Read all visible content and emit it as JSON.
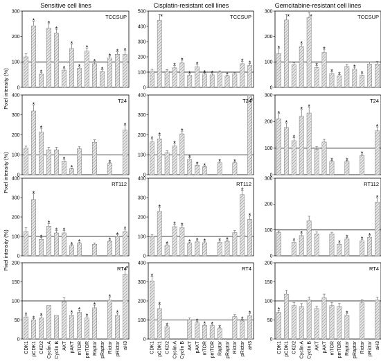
{
  "column_titles": [
    "Sensitive cell lines",
    "Cisplatin-resistant cell lines",
    "Gemcitabine-resistant cell lines"
  ],
  "row_labels": [
    "TCCSUP",
    "T24",
    "RT112",
    "RT4"
  ],
  "y_axis_label": "Pixel intensity (%)",
  "categories": [
    "CDK1",
    "pCDK1",
    "CKD2",
    "Cyclin A",
    "Cyclin B",
    "AKT",
    "pAKT",
    "mTOR",
    "pmTOR",
    "Raptor",
    "pRaptor",
    "Rictor",
    "pRictor",
    "aH3"
  ],
  "colors": {
    "bar_fill": "#d9d9d9",
    "bar_hatch": "#7f7f7f",
    "axis": "#000000",
    "reference_line": "#000000"
  },
  "chart_data": [
    {
      "type": "bar",
      "row": "TCCSUP",
      "column": "Sensitive cell lines",
      "ylim": [
        0,
        300
      ],
      "yticks": [
        0,
        100,
        200,
        300
      ],
      "reference_line": 100,
      "values": [
        120,
        242,
        52,
        233,
        213,
        68,
        153,
        75,
        143,
        93,
        62,
        115,
        130,
        130
      ],
      "errors": [
        12,
        18,
        6,
        18,
        16,
        6,
        18,
        6,
        12,
        8,
        7,
        8,
        10,
        15
      ],
      "significant": [
        false,
        true,
        true,
        true,
        true,
        true,
        true,
        true,
        true,
        true,
        true,
        true,
        true,
        true
      ]
    },
    {
      "type": "bar",
      "row": "TCCSUP",
      "column": "Cisplatin-resistant cell lines",
      "ylim": [
        0,
        500
      ],
      "yticks": [
        0,
        100,
        200,
        300,
        400,
        500
      ],
      "reference_line": 100,
      "values": [
        108,
        440,
        108,
        128,
        160,
        80,
        135,
        88,
        82,
        100,
        75,
        90,
        155,
        145
      ],
      "errors": [
        10,
        40,
        8,
        15,
        18,
        8,
        14,
        8,
        8,
        8,
        6,
        8,
        15,
        12
      ],
      "significant": [
        false,
        true,
        false,
        true,
        true,
        true,
        true,
        true,
        true,
        false,
        true,
        false,
        true,
        true
      ],
      "offscale": []
    },
    {
      "type": "bar",
      "row": "TCCSUP",
      "column": "Gemcitabine-resistant cell lines",
      "ylim": [
        0,
        300
      ],
      "yticks": [
        0,
        100,
        200,
        300
      ],
      "reference_line": 100,
      "values": [
        133,
        265,
        90,
        160,
        275,
        78,
        138,
        55,
        45,
        82,
        72,
        48,
        92,
        92
      ],
      "errors": [
        20,
        22,
        8,
        10,
        20,
        8,
        12,
        6,
        6,
        8,
        7,
        5,
        8,
        10
      ],
      "significant": [
        true,
        true,
        false,
        true,
        true,
        true,
        true,
        true,
        true,
        false,
        true,
        true,
        false,
        false
      ]
    },
    {
      "type": "bar",
      "row": "T24",
      "column": "Sensitive cell lines",
      "ylim": [
        0,
        400
      ],
      "yticks": [
        0,
        100,
        200,
        300,
        400
      ],
      "reference_line": 100,
      "values": [
        133,
        320,
        215,
        125,
        125,
        68,
        30,
        130,
        null,
        163,
        null,
        57,
        null,
        225
      ],
      "errors": [
        10,
        30,
        18,
        12,
        12,
        8,
        4,
        10,
        null,
        12,
        null,
        4,
        null,
        22
      ],
      "significant": [
        false,
        true,
        true,
        false,
        false,
        true,
        true,
        false,
        false,
        false,
        false,
        true,
        false,
        true
      ]
    },
    {
      "type": "bar",
      "row": "T24",
      "column": "Cisplatin-resistant cell lines",
      "ylim": [
        0,
        400
      ],
      "yticks": [
        0,
        100,
        200,
        300,
        400
      ],
      "reference_line": 100,
      "values": [
        165,
        180,
        110,
        145,
        205,
        78,
        48,
        40,
        null,
        60,
        null,
        60,
        null,
        415
      ],
      "errors": [
        15,
        18,
        10,
        12,
        14,
        8,
        5,
        4,
        null,
        6,
        null,
        5,
        null,
        25
      ],
      "significant": [
        true,
        true,
        false,
        true,
        true,
        true,
        true,
        true,
        false,
        true,
        false,
        true,
        false,
        true
      ]
    },
    {
      "type": "bar",
      "row": "T24",
      "column": "Gemcitabine-resistant cell lines",
      "ylim": [
        0,
        300
      ],
      "yticks": [
        0,
        100,
        200,
        300
      ],
      "reference_line": 100,
      "values": [
        210,
        178,
        128,
        220,
        232,
        95,
        123,
        50,
        null,
        50,
        null,
        72,
        null,
        165
      ],
      "errors": [
        20,
        16,
        12,
        25,
        22,
        10,
        10,
        4,
        null,
        4,
        null,
        6,
        null,
        15
      ],
      "significant": [
        true,
        true,
        true,
        true,
        true,
        false,
        false,
        true,
        false,
        true,
        false,
        true,
        false,
        true
      ]
    },
    {
      "type": "bar",
      "row": "RT112",
      "column": "Sensitive cell lines",
      "ylim": [
        0,
        400
      ],
      "yticks": [
        0,
        100,
        200,
        300,
        400
      ],
      "reference_line": 100,
      "values": [
        125,
        290,
        85,
        152,
        118,
        118,
        52,
        65,
        null,
        60,
        null,
        75,
        100,
        125
      ],
      "errors": [
        20,
        30,
        10,
        15,
        12,
        12,
        6,
        6,
        null,
        6,
        null,
        6,
        8,
        12
      ],
      "significant": [
        false,
        true,
        true,
        true,
        true,
        true,
        true,
        true,
        false,
        false,
        false,
        true,
        true,
        true
      ]
    },
    {
      "type": "bar",
      "row": "RT112",
      "column": "Cisplatin-resistant cell lines",
      "ylim": [
        0,
        400
      ],
      "yticks": [
        0,
        100,
        200,
        300,
        400
      ],
      "reference_line": 100,
      "values": [
        100,
        230,
        55,
        150,
        145,
        65,
        72,
        68,
        null,
        70,
        75,
        120,
        315,
        188
      ],
      "errors": [
        8,
        20,
        6,
        12,
        12,
        6,
        7,
        7,
        null,
        7,
        7,
        10,
        22,
        18
      ],
      "significant": [
        false,
        true,
        true,
        true,
        true,
        true,
        true,
        true,
        false,
        true,
        true,
        false,
        true,
        true
      ]
    },
    {
      "type": "bar",
      "row": "RT112",
      "column": "Gemcitabine-resistant cell lines",
      "ylim": [
        0,
        300
      ],
      "yticks": [
        0,
        100,
        200,
        300
      ],
      "reference_line": 100,
      "values": [
        90,
        null,
        52,
        78,
        135,
        85,
        null,
        85,
        45,
        65,
        null,
        58,
        72,
        208
      ],
      "errors": [
        6,
        null,
        6,
        8,
        18,
        8,
        null,
        6,
        5,
        6,
        null,
        6,
        6,
        15
      ],
      "significant": [
        false,
        false,
        true,
        true,
        false,
        false,
        false,
        false,
        true,
        true,
        false,
        true,
        true,
        true
      ]
    },
    {
      "type": "bar",
      "row": "RT4",
      "column": "Sensitive cell lines",
      "ylim": [
        0,
        200
      ],
      "yticks": [
        0,
        50,
        100,
        150,
        200
      ],
      "reference_line": 100,
      "values": [
        58,
        50,
        55,
        88,
        62,
        98,
        62,
        70,
        55,
        82,
        null,
        102,
        62,
        170
      ],
      "errors": [
        5,
        4,
        6,
        null,
        null,
        10,
        6,
        6,
        5,
        7,
        null,
        8,
        6,
        15
      ],
      "significant": [
        true,
        true,
        true,
        false,
        false,
        false,
        true,
        true,
        true,
        true,
        false,
        true,
        true,
        true
      ]
    },
    {
      "type": "bar",
      "row": "RT4",
      "column": "Cisplatin-resistant cell lines",
      "ylim": [
        0,
        400
      ],
      "yticks": [
        0,
        100,
        200,
        300,
        400
      ],
      "reference_line": 100,
      "values": [
        305,
        160,
        65,
        null,
        null,
        102,
        85,
        72,
        70,
        55,
        null,
        118,
        95,
        122
      ],
      "errors": [
        25,
        20,
        6,
        null,
        null,
        8,
        7,
        6,
        6,
        5,
        null,
        10,
        8,
        12
      ],
      "significant": [
        true,
        true,
        true,
        false,
        false,
        false,
        true,
        true,
        true,
        true,
        false,
        false,
        true,
        true
      ]
    },
    {
      "type": "bar",
      "row": "RT4",
      "column": "Gemcitabine-resistant cell lines",
      "ylim": [
        0,
        200
      ],
      "yticks": [
        0,
        50,
        100,
        150,
        200
      ],
      "reference_line": 100,
      "values": [
        70,
        118,
        88,
        85,
        102,
        80,
        108,
        88,
        85,
        62,
        null,
        95,
        null,
        102
      ],
      "errors": [
        6,
        10,
        8,
        8,
        8,
        6,
        10,
        8,
        8,
        5,
        null,
        8,
        null,
        8
      ],
      "significant": [
        true,
        false,
        false,
        false,
        false,
        false,
        false,
        false,
        false,
        true,
        false,
        false,
        false,
        false
      ]
    }
  ]
}
